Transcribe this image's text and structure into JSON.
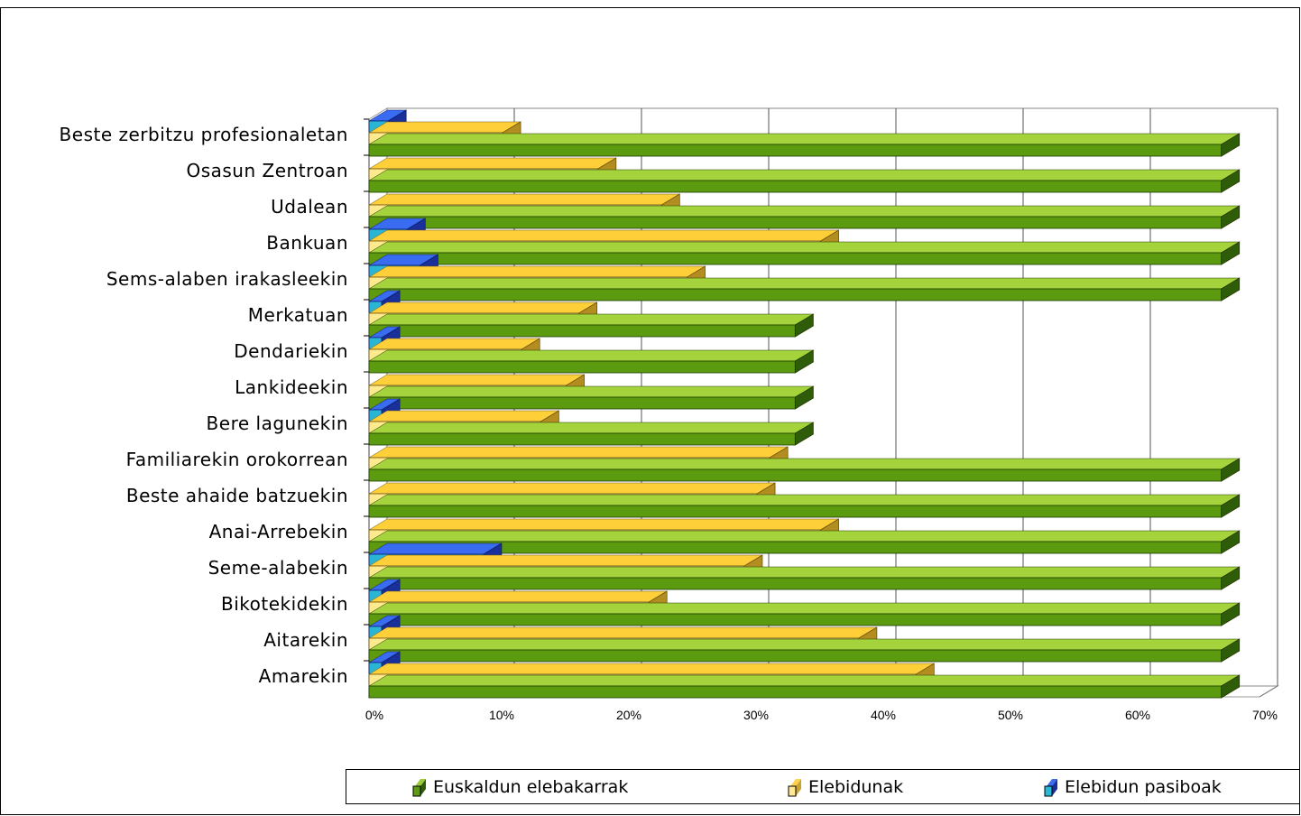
{
  "chart_data": {
    "type": "bar",
    "orientation": "horizontal",
    "stacked": false,
    "three_d": true,
    "categories": [
      "Beste zerbitzu profesionaletan",
      "Osasun Zentroan",
      "Udalean",
      "Bankuan",
      "Sems-alaben irakasleekin",
      "Merkatuan",
      "Dendariekin",
      "Lankideekin",
      "Bere lagunekin",
      "Familiarekin orokorrean",
      "Beste ahaide batzuekin",
      "Anai-Arrebekin",
      "Seme-alabekin",
      "Bikotekidekin",
      "Aitarekin",
      "Amarekin"
    ],
    "series": [
      {
        "name": "Euskaldun elebakarrak",
        "color": "#5f9a14",
        "values": [
          67,
          67,
          67,
          67,
          67,
          33.5,
          33.5,
          33.5,
          33.5,
          67,
          67,
          67,
          67,
          67,
          67,
          67
        ]
      },
      {
        "name": "Elebidunak",
        "color": "#ffe070",
        "values": [
          10.5,
          18,
          23,
          35.5,
          25,
          16.5,
          12,
          15.5,
          13.5,
          31.5,
          30.5,
          35.5,
          29.5,
          22,
          38.5,
          43
        ]
      },
      {
        "name": "Elebidun pasiboak",
        "color": "#2a5fd6",
        "values": [
          1.5,
          0,
          0,
          3,
          4,
          1,
          1,
          0,
          1,
          0,
          0,
          0,
          9,
          1,
          1,
          1
        ]
      }
    ],
    "xlim": [
      0,
      70
    ],
    "x_ticks": [
      "0%",
      "10%",
      "20%",
      "30%",
      "40%",
      "50%",
      "60%",
      "70%"
    ],
    "grid": "vertical",
    "legend_position": "bottom"
  }
}
